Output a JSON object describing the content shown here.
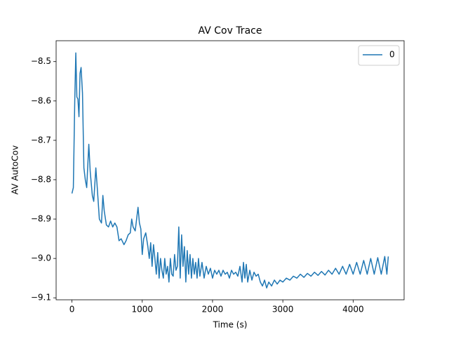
{
  "chart_data": {
    "type": "line",
    "title": "AV Cov Trace",
    "x_label": "Time (s)",
    "y_label": "AV AutoCov",
    "x": [
      0,
      20,
      40,
      55,
      70,
      85,
      100,
      115,
      130,
      150,
      170,
      190,
      210,
      240,
      260,
      290,
      310,
      340,
      360,
      390,
      420,
      440,
      460,
      490,
      520,
      550,
      580,
      610,
      640,
      670,
      700,
      740,
      770,
      800,
      830,
      850,
      870,
      900,
      940,
      960,
      980,
      1000,
      1020,
      1050,
      1080,
      1100,
      1120,
      1140,
      1160,
      1180,
      1200,
      1220,
      1240,
      1260,
      1280,
      1300,
      1320,
      1340,
      1360,
      1380,
      1400,
      1420,
      1440,
      1460,
      1480,
      1500,
      1520,
      1540,
      1560,
      1580,
      1600,
      1620,
      1640,
      1660,
      1680,
      1700,
      1720,
      1740,
      1760,
      1780,
      1800,
      1820,
      1850,
      1880,
      1910,
      1940,
      1970,
      2000,
      2030,
      2060,
      2090,
      2120,
      2150,
      2180,
      2210,
      2240,
      2270,
      2300,
      2330,
      2360,
      2390,
      2420,
      2440,
      2460,
      2480,
      2500,
      2530,
      2560,
      2590,
      2620,
      2650,
      2680,
      2710,
      2740,
      2770,
      2800,
      2840,
      2880,
      2920,
      2960,
      3000,
      3050,
      3100,
      3150,
      3200,
      3250,
      3300,
      3350,
      3400,
      3450,
      3500,
      3550,
      3600,
      3650,
      3700,
      3750,
      3800,
      3850,
      3900,
      3950,
      4000,
      4050,
      4100,
      4150,
      4200,
      4250,
      4300,
      4350,
      4400,
      4450,
      4480,
      4500
    ],
    "series": [
      {
        "name": "0",
        "color": "#1f77b4",
        "values": [
          -8.835,
          -8.82,
          -8.6,
          -8.478,
          -8.59,
          -8.595,
          -8.64,
          -8.53,
          -8.515,
          -8.58,
          -8.77,
          -8.8,
          -8.82,
          -8.71,
          -8.78,
          -8.84,
          -8.855,
          -8.77,
          -8.82,
          -8.9,
          -8.91,
          -8.84,
          -8.88,
          -8.915,
          -8.92,
          -8.905,
          -8.92,
          -8.91,
          -8.92,
          -8.955,
          -8.95,
          -8.965,
          -8.955,
          -8.94,
          -8.935,
          -8.9,
          -8.92,
          -8.93,
          -8.87,
          -8.91,
          -8.925,
          -8.99,
          -8.95,
          -8.935,
          -8.97,
          -9.0,
          -8.96,
          -9.02,
          -8.965,
          -9.0,
          -9.04,
          -8.985,
          -9.05,
          -9.0,
          -9.03,
          -9.05,
          -9.0,
          -9.04,
          -9.02,
          -9.06,
          -9.0,
          -9.04,
          -9.045,
          -8.99,
          -9.03,
          -9.02,
          -8.92,
          -9.05,
          -8.94,
          -9.02,
          -8.97,
          -9.06,
          -8.98,
          -9.04,
          -8.99,
          -9.05,
          -9.0,
          -9.04,
          -9.01,
          -9.05,
          -9.0,
          -9.045,
          -9.01,
          -9.05,
          -9.02,
          -9.04,
          -9.025,
          -9.05,
          -9.03,
          -9.04,
          -9.03,
          -9.045,
          -9.03,
          -9.04,
          -9.035,
          -9.05,
          -9.03,
          -9.04,
          -9.035,
          -9.045,
          -9.02,
          -9.06,
          -9.01,
          -9.05,
          -9.015,
          -9.06,
          -9.03,
          -9.055,
          -9.035,
          -9.045,
          -9.04,
          -9.06,
          -9.07,
          -9.055,
          -9.075,
          -9.06,
          -9.07,
          -9.055,
          -9.065,
          -9.055,
          -9.06,
          -9.05,
          -9.055,
          -9.045,
          -9.05,
          -9.04,
          -9.048,
          -9.038,
          -9.045,
          -9.035,
          -9.043,
          -9.033,
          -9.042,
          -9.03,
          -9.04,
          -9.025,
          -9.04,
          -9.02,
          -9.04,
          -9.015,
          -9.04,
          -9.01,
          -9.04,
          -9.005,
          -9.04,
          -9.0,
          -9.04,
          -8.998,
          -9.04,
          -8.995,
          -9.04,
          -8.995
        ]
      }
    ],
    "xlim": [
      -225,
      4725
    ],
    "ylim": [
      -9.105,
      -8.447
    ],
    "xticks": [
      0,
      1000,
      2000,
      3000,
      4000
    ],
    "yticks": [
      {
        "value": -9.1,
        "label": "−9.1"
      },
      {
        "value": -9.0,
        "label": "−9.0"
      },
      {
        "value": -8.9,
        "label": "−8.9"
      },
      {
        "value": -8.8,
        "label": "−8.8"
      },
      {
        "value": -8.7,
        "label": "−8.7"
      },
      {
        "value": -8.6,
        "label": "−8.6"
      },
      {
        "value": -8.5,
        "label": "−8.5"
      }
    ],
    "grid": false,
    "legend": "upper right"
  }
}
